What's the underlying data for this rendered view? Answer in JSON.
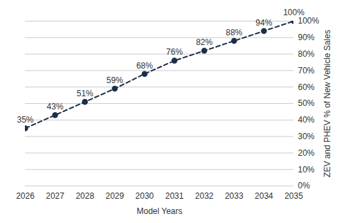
{
  "chart_data": {
    "type": "line",
    "x_label": "Model Years",
    "y_label": "ZEV and PHEV % of New Vehicle Sales",
    "x": [
      2026,
      2027,
      2028,
      2029,
      2030,
      2031,
      2032,
      2033,
      2034,
      2035
    ],
    "values": [
      35,
      43,
      51,
      59,
      68,
      76,
      82,
      88,
      94,
      100
    ],
    "value_labels": [
      "35%",
      "43%",
      "51%",
      "59%",
      "68%",
      "76%",
      "82%",
      "88%",
      "94%",
      "100%"
    ],
    "color": "#1c2e4a",
    "marker": "circle",
    "line_style": "dashed",
    "xlim": [
      2026,
      2035
    ],
    "xticks": [
      2026,
      2027,
      2028,
      2029,
      2030,
      2031,
      2032,
      2033,
      2034,
      2035
    ],
    "ylim": [
      0,
      100
    ],
    "yticks": [
      {
        "value": 0,
        "label": "0%"
      },
      {
        "value": 10,
        "label": "10%"
      },
      {
        "value": 20,
        "label": "20%"
      },
      {
        "value": 30,
        "label": "30%"
      },
      {
        "value": 40,
        "label": "40%"
      },
      {
        "value": 50,
        "label": "50%"
      },
      {
        "value": 60,
        "label": "60%"
      },
      {
        "value": 70,
        "label": "70%"
      },
      {
        "value": 80,
        "label": "80%"
      },
      {
        "value": 90,
        "label": "90%"
      },
      {
        "value": 100,
        "label": "100%"
      }
    ],
    "grid": true,
    "data_labels": true
  }
}
